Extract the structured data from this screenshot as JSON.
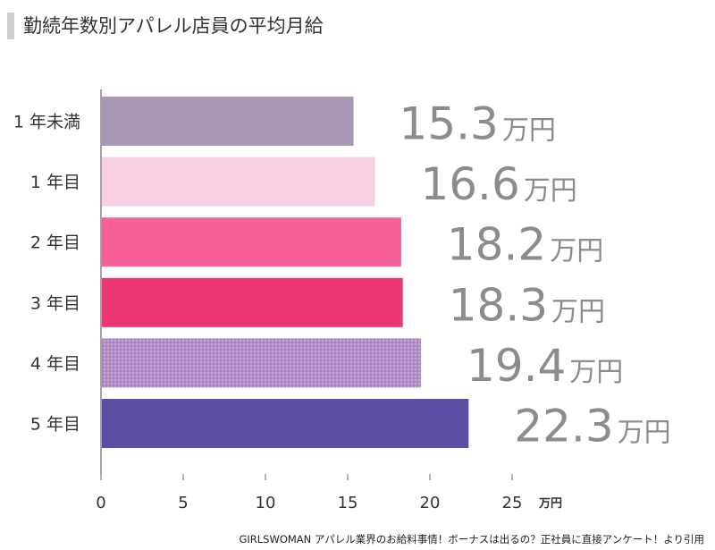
{
  "title": "勤続年数別アパレル店員の平均月給",
  "source": "GIRLSWOMAN アパレル業界のお給料事情！ボーナスは出るの？正社員に直接アンケート！より引用",
  "chart_data": {
    "type": "bar",
    "orientation": "horizontal",
    "title": "勤続年数別アパレル店員の平均月給",
    "categories": [
      "1 年未満",
      "1 年目",
      "2 年目",
      "3 年目",
      "4 年目",
      "5 年目"
    ],
    "values": [
      15.3,
      16.6,
      18.2,
      18.3,
      19.4,
      22.3
    ],
    "value_labels": [
      "15.3",
      "16.6",
      "18.2",
      "18.3",
      "19.4",
      "22.3"
    ],
    "value_unit": "万円",
    "bar_colors": [
      "#a898b4",
      "#f4d0e2",
      "#f8609a",
      "#ec3776",
      "#b38fc7",
      "#5c4ea4"
    ],
    "bar_patterns": [
      "solid",
      "solid",
      "solid",
      "solid",
      "dotted",
      "solid"
    ],
    "xlim": [
      0,
      25
    ],
    "xticks": [
      0,
      5,
      10,
      15,
      20,
      25
    ],
    "xlabel": "万円",
    "grid": false,
    "legend": "none"
  }
}
